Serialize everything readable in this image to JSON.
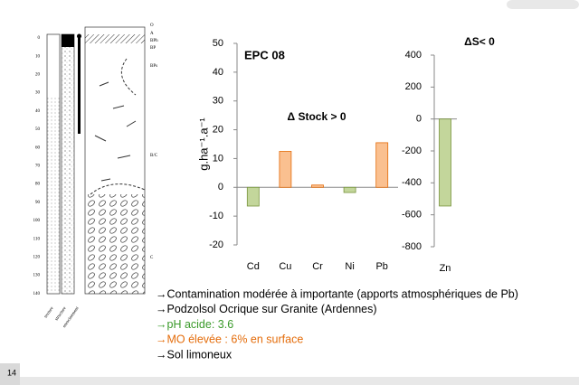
{
  "slide_number": "14",
  "profile": {
    "depths": [
      "0",
      "10",
      "20",
      "30",
      "40",
      "50",
      "60",
      "70",
      "80",
      "90",
      "100",
      "110",
      "120",
      "130",
      "140"
    ],
    "horizons": [
      "O",
      "A",
      "BPh",
      "BP",
      "BPs",
      "B/C",
      "C"
    ],
    "columns": [
      "texture",
      "structure",
      "enracinement"
    ]
  },
  "chart_data": [
    {
      "type": "bar",
      "ylabel": "g.ha⁻¹.a⁻¹",
      "annotations": [
        "EPC 08",
        "Δ Stock > 0"
      ],
      "categories": [
        "Cd",
        "Cu",
        "Cr",
        "Ni",
        "Pb"
      ],
      "values": [
        -6.5,
        12.5,
        0.8,
        -1.8,
        15.5
      ],
      "colors": [
        "#c3d69b",
        "#fac090",
        "#fac090",
        "#c3d69b",
        "#fac090"
      ],
      "edgecolors": [
        "#77933c",
        "#e46c0a",
        "#e46c0a",
        "#77933c",
        "#e46c0a"
      ],
      "ylim": [
        -20,
        50
      ],
      "yticks": [
        -20,
        -10,
        0,
        10,
        20,
        30,
        40,
        50
      ]
    },
    {
      "type": "bar",
      "annotations": [
        "ΔS< 0"
      ],
      "categories": [
        "Zn"
      ],
      "values": [
        -545
      ],
      "colors": [
        "#c3d69b"
      ],
      "edgecolors": [
        "#77933c"
      ],
      "ylim": [
        -800,
        400
      ],
      "yticks": [
        -800,
        -600,
        -400,
        -200,
        0,
        200,
        400
      ]
    }
  ],
  "bullets": [
    {
      "text": "→Contamination modérée à importante (apports atmosphériques de Pb)",
      "color": "#000000"
    },
    {
      "text": "→Podzolsol Ocrique sur Granite (Ardennes)",
      "color": "#000000"
    },
    {
      "text": "→pH acide: 3.6",
      "color": "#3a9a2a"
    },
    {
      "text": "→MO élevée : 6% en surface",
      "color": "#e46c0a"
    },
    {
      "text": "→Sol limoneux",
      "color": "#000000"
    }
  ]
}
